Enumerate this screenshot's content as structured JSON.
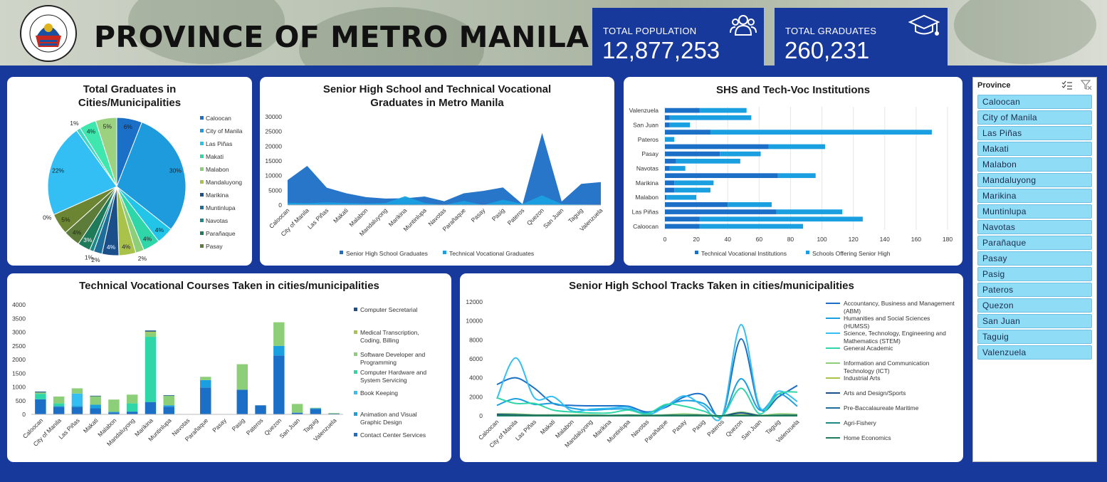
{
  "header": {
    "title": "PROVINCE OF METRO MANILA",
    "seal_text": [
      "LUNGSOD NG MAYNILA",
      "PILIPINAS"
    ]
  },
  "stats": {
    "population_label": "TOTAL POPULATION",
    "population_value": "12,877,253",
    "graduates_label": "TOTAL GRADUATES",
    "graduates_value": "260,231"
  },
  "slicer": {
    "header": "Province",
    "items": [
      "Caloocan",
      "City of Manila",
      "Las Piñas",
      "Makati",
      "Malabon",
      "Mandaluyong",
      "Marikina",
      "Muntinlupa",
      "Navotas",
      "Parañaque",
      "Pasay",
      "Pasig",
      "Pateros",
      "Quezon",
      "San Juan",
      "Taguig",
      "Valenzuela"
    ]
  },
  "chart_data": [
    {
      "type": "pie",
      "title": "Total Graduates in Cities/Municipalities",
      "legend": [
        "Caloocan",
        "City of Manila",
        "Las Piñas",
        "Makati",
        "Malabon",
        "Mandaluyong",
        "Marikina",
        "Muntinlupa",
        "Navotas",
        "Parañaque",
        "Pasay"
      ],
      "categories": [
        "Caloocan",
        "City of Manila",
        "Las Piñas",
        "Makati",
        "Malabon",
        "Mandaluyong",
        "Marikina",
        "Muntinlupa",
        "Navotas",
        "Parañaque",
        "Pasay",
        "Pasig",
        "Pateros",
        "Quezon",
        "San Juan",
        "Taguig",
        "Valenzuela"
      ],
      "values": [
        6,
        30,
        4,
        4,
        2,
        4,
        4,
        2,
        1,
        3,
        4,
        5,
        0,
        22,
        1,
        4,
        5
      ],
      "labels": [
        "6%",
        "30%",
        "4%",
        "4%",
        "2%",
        "4%",
        "4%",
        "2%",
        "1%",
        "3%",
        "4%",
        "5%",
        "0%",
        "22%",
        "1%",
        "4%",
        "5%"
      ],
      "colors": [
        "#1b6fc6",
        "#1e9bdc",
        "#22c4e8",
        "#2fd6a8",
        "#8ccf78",
        "#a9c24a",
        "#1a4f8a",
        "#1f6e9a",
        "#1b8a86",
        "#1f7a5a",
        "#5d7c3a",
        "#6b8532",
        "#4a8fd0",
        "#33bff3",
        "#3fd6c4",
        "#3fe6ad",
        "#9bd17f"
      ],
      "legend_position": "right"
    },
    {
      "type": "area",
      "title": "Senior High School and Technical Vocational Graduates in Metro Manila",
      "categories": [
        "Caloocan",
        "City of Manila",
        "Las Piñas",
        "Makati",
        "Malabon",
        "Mandaluyong",
        "Marikina",
        "Muntinlupa",
        "Navotas",
        "Parañaque",
        "Pasay",
        "Pasig",
        "Pateros",
        "Quezon",
        "San Juan",
        "Taguig",
        "Valenzuela"
      ],
      "series": [
        {
          "name": "Senior High School Graduates",
          "values": [
            8500,
            13300,
            5900,
            4000,
            2700,
            2200,
            2300,
            2900,
            1300,
            4000,
            4800,
            6000,
            300,
            24500,
            1200,
            7200,
            7800
          ],
          "color": "#1b6fc6"
        },
        {
          "name": "Technical Vocational Graduates",
          "values": [
            800,
            650,
            900,
            700,
            500,
            700,
            3000,
            700,
            0,
            1400,
            0,
            1800,
            350,
            3300,
            350,
            250,
            50
          ],
          "color": "#1aa0e0"
        }
      ],
      "ylim": [
        0,
        30000
      ],
      "yticks": [
        0,
        5000,
        10000,
        15000,
        20000,
        25000,
        30000
      ],
      "legend_position": "bottom"
    },
    {
      "type": "bar",
      "title": "SHS and Tech-Voc Institutions",
      "orientation": "horizontal",
      "stacked": true,
      "categories": [
        "Caloocan",
        "City of Manila",
        "Las Piñas",
        "Makati",
        "Malabon",
        "Mandaluyong",
        "Marikina",
        "Muntinlupa",
        "Navotas",
        "Parañaque",
        "Pasay",
        "Pasig",
        "Pateros",
        "Quezon",
        "San Juan",
        "Taguig",
        "Valenzuela"
      ],
      "category_labels_shown": [
        "Caloocan",
        "Las Piñas",
        "Malabon",
        "Marikina",
        "Navotas",
        "Pasay",
        "Pateros",
        "San Juan",
        "Valenzuela"
      ],
      "series": [
        {
          "name": "Technical Vocational Institutions",
          "values": [
            22,
            22,
            71,
            40,
            1,
            6,
            6,
            72,
            3,
            7,
            35,
            66,
            0,
            29,
            3,
            3,
            22
          ],
          "color": "#1b6fc6"
        },
        {
          "name": "Schools Offering Senior High",
          "values": [
            66,
            104,
            42,
            28,
            19,
            23,
            25,
            24,
            10,
            41,
            26,
            36,
            6,
            141,
            13,
            52,
            30
          ],
          "color": "#1aa0e0"
        }
      ],
      "xlim": [
        0,
        180
      ],
      "xticks": [
        0,
        20,
        40,
        60,
        80,
        100,
        120,
        140,
        160,
        180
      ],
      "legend_position": "bottom"
    },
    {
      "type": "bar",
      "title": "Technical Vocational Courses Taken in cities/municipalities",
      "stacked": true,
      "categories": [
        "Caloocan",
        "City of Manila",
        "Las Piñas",
        "Makati",
        "Malabon",
        "Mandaluyong",
        "Marikina",
        "Muntinlupa",
        "Navotas",
        "Parañaque",
        "Pasay",
        "Pasig",
        "Pateros",
        "Quezon",
        "San Juan",
        "Taguig",
        "Valenzuela"
      ],
      "series": [
        {
          "name": "Contact Center Services",
          "values": [
            550,
            280,
            260,
            220,
            70,
            100,
            450,
            280,
            0,
            980,
            0,
            900,
            330,
            2150,
            60,
            200,
            30
          ],
          "color": "#1b6fc6"
        },
        {
          "name": "Animation and Visual Graphic Design",
          "values": [
            0,
            20,
            50,
            130,
            20,
            0,
            0,
            50,
            0,
            270,
            0,
            0,
            0,
            350,
            0,
            20,
            0
          ],
          "color": "#1aa0e0"
        },
        {
          "name": "Book Keeping",
          "values": [
            0,
            0,
            450,
            0,
            0,
            0,
            0,
            0,
            0,
            0,
            0,
            0,
            0,
            0,
            0,
            0,
            0
          ],
          "color": "#33bff3"
        },
        {
          "name": "Computer Hardware and System Servicing",
          "values": [
            200,
            100,
            0,
            0,
            0,
            300,
            2380,
            0,
            0,
            0,
            0,
            0,
            0,
            0,
            0,
            0,
            0
          ],
          "color": "#2fd6a8"
        },
        {
          "name": "Software Developer and Programming",
          "values": [
            50,
            250,
            190,
            310,
            450,
            320,
            150,
            350,
            0,
            120,
            0,
            930,
            0,
            860,
            320,
            20,
            20
          ],
          "color": "#8ccf78"
        },
        {
          "name": "Medical Transcription, Coding, Billing",
          "values": [
            0,
            0,
            0,
            0,
            0,
            0,
            40,
            0,
            0,
            0,
            0,
            0,
            0,
            0,
            0,
            0,
            0
          ],
          "color": "#a9c24a"
        },
        {
          "name": "Computer Secretarial",
          "values": [
            30,
            0,
            0,
            20,
            0,
            0,
            40,
            20,
            0,
            0,
            0,
            0,
            0,
            0,
            0,
            0,
            0
          ],
          "color": "#1a4f8a"
        }
      ],
      "ylim": [
        0,
        4000
      ],
      "yticks": [
        0,
        500,
        1000,
        1500,
        2000,
        2500,
        3000,
        3500,
        4000
      ],
      "legend_position": "right"
    },
    {
      "type": "line",
      "title": "Senior High School Tracks Taken in cities/municipalities",
      "categories": [
        "Caloocan",
        "City of Manila",
        "Las Piñas",
        "Makati",
        "Malabon",
        "Mandaluyong",
        "Marikina",
        "Muntinlupa",
        "Navotas",
        "Parañaque",
        "Pasay",
        "Pasig",
        "Pateros",
        "Quezon",
        "San Juan",
        "Taguig",
        "Valenzuela"
      ],
      "series": [
        {
          "name": "Accountancy, Business and Management (ABM)",
          "values": [
            3300,
            4000,
            2900,
            1300,
            1100,
            1050,
            1050,
            1000,
            400,
            900,
            2000,
            2200,
            0,
            8100,
            800,
            2000,
            3200
          ],
          "color": "#1b6fc6"
        },
        {
          "name": "Humanities and Social Sciences (HUMSS)",
          "values": [
            1100,
            1800,
            1200,
            1300,
            800,
            600,
            700,
            700,
            300,
            1100,
            1600,
            1300,
            0,
            3900,
            600,
            2300,
            1000
          ],
          "color": "#1aa0e0"
        },
        {
          "name": "Science, Technology, Engineering and Mathematics (STEM)",
          "values": [
            1800,
            6100,
            1900,
            2000,
            500,
            700,
            800,
            900,
            100,
            1000,
            2100,
            1000,
            0,
            9600,
            900,
            2600,
            1500
          ],
          "color": "#33bff3"
        },
        {
          "name": "General Academic",
          "values": [
            1900,
            1300,
            1300,
            600,
            400,
            300,
            300,
            600,
            200,
            1200,
            1000,
            500,
            0,
            2900,
            200,
            2300,
            2500
          ],
          "color": "#2fd6a8"
        },
        {
          "name": "Information and Communication Technology (ICT)",
          "values": [
            200,
            200,
            100,
            100,
            100,
            100,
            50,
            100,
            50,
            100,
            200,
            100,
            0,
            400,
            50,
            200,
            150
          ],
          "color": "#8ccf78"
        },
        {
          "name": "Industrial Arts",
          "values": [
            100,
            50,
            50,
            50,
            20,
            20,
            20,
            50,
            20,
            50,
            50,
            50,
            0,
            100,
            20,
            50,
            50
          ],
          "color": "#a9c24a"
        },
        {
          "name": "Arts and Design/Sports",
          "values": [
            150,
            100,
            50,
            50,
            30,
            30,
            30,
            50,
            20,
            50,
            50,
            50,
            0,
            300,
            20,
            50,
            50
          ],
          "color": "#1a4f8a"
        },
        {
          "name": "Pre-Baccalaureate Maritime",
          "values": [
            0,
            0,
            0,
            0,
            0,
            0,
            0,
            0,
            0,
            0,
            0,
            0,
            0,
            0,
            0,
            0,
            0
          ],
          "color": "#1f6e9a"
        },
        {
          "name": "Agri-Fishery",
          "values": [
            0,
            0,
            0,
            0,
            0,
            0,
            0,
            0,
            0,
            0,
            0,
            0,
            0,
            0,
            0,
            0,
            0
          ],
          "color": "#1b8a86"
        },
        {
          "name": "Home Economics",
          "values": [
            50,
            50,
            20,
            20,
            20,
            20,
            20,
            20,
            10,
            20,
            20,
            20,
            0,
            50,
            10,
            20,
            20
          ],
          "color": "#1f7a5a"
        }
      ],
      "ylim": [
        0,
        12000
      ],
      "yticks": [
        0,
        2000,
        4000,
        6000,
        8000,
        10000,
        12000
      ],
      "legend_position": "right"
    }
  ]
}
